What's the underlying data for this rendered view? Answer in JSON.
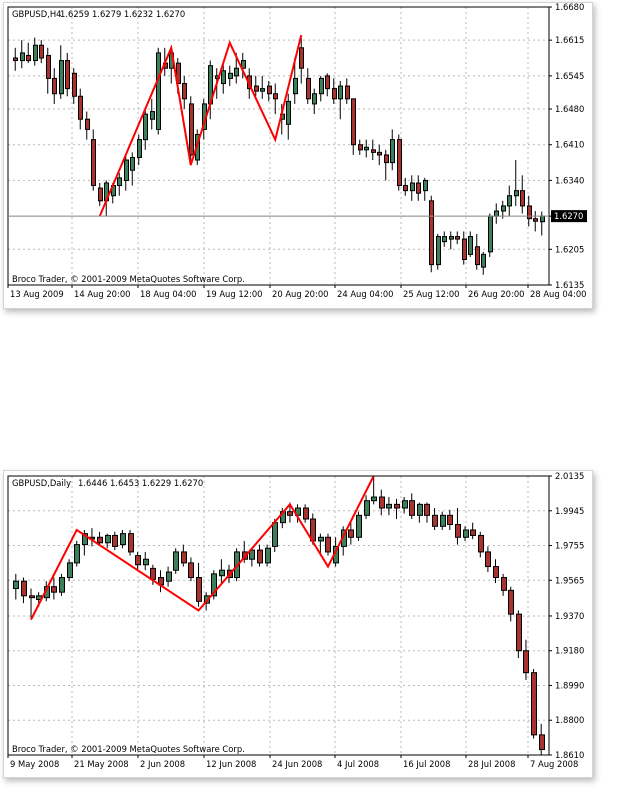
{
  "chart_data": [
    {
      "type": "candlestick",
      "symbol_header": "GBPUSD,H4",
      "ohlc_header": "1.6259 1.6279 1.6232 1.6270",
      "current_price": "1.6270",
      "watermark": "Broco Trader, © 2001-2009 MetaQuotes Software Corp.",
      "ylim": [
        1.6135,
        1.668
      ],
      "y_ticks": [
        "1.6680",
        "1.6615",
        "1.6545",
        "1.6480",
        "1.6410",
        "1.6340",
        "1.6270",
        "1.6205",
        "1.6135"
      ],
      "x_ticks": [
        "13 Aug 2009",
        "14 Aug 20:00",
        "18 Aug 04:00",
        "19 Aug 12:00",
        "20 Aug 20:00",
        "24 Aug 04:00",
        "25 Aug 12:00",
        "26 Aug 20:00",
        "28 Aug 04:00"
      ],
      "colors": {
        "bull": "#3d7f5a",
        "bear": "#a8322e",
        "zigzag": "#ff0000"
      },
      "candles": [
        [
          1.658,
          1.66,
          1.6555,
          1.6575
        ],
        [
          1.6575,
          1.6615,
          1.656,
          1.659
        ],
        [
          1.6585,
          1.661,
          1.657,
          1.6575
        ],
        [
          1.6575,
          1.662,
          1.6565,
          1.6605
        ],
        [
          1.6605,
          1.6615,
          1.657,
          1.658
        ],
        [
          1.6585,
          1.66,
          1.651,
          1.654
        ],
        [
          1.654,
          1.656,
          1.649,
          1.651
        ],
        [
          1.651,
          1.6605,
          1.65,
          1.6575
        ],
        [
          1.6575,
          1.659,
          1.6505,
          1.652
        ],
        [
          1.655,
          1.656,
          1.649,
          1.6505
        ],
        [
          1.6505,
          1.652,
          1.644,
          1.646
        ],
        [
          1.646,
          1.6475,
          1.642,
          1.644
        ],
        [
          1.642,
          1.644,
          1.632,
          1.633
        ],
        [
          1.6325,
          1.6335,
          1.629,
          1.63
        ],
        [
          1.63,
          1.634,
          1.627,
          1.6335
        ],
        [
          1.631,
          1.6335,
          1.6295,
          1.633
        ],
        [
          1.633,
          1.6355,
          1.631,
          1.6345
        ],
        [
          1.634,
          1.639,
          1.632,
          1.638
        ],
        [
          1.636,
          1.6395,
          1.633,
          1.6385
        ],
        [
          1.6385,
          1.643,
          1.637,
          1.642
        ],
        [
          1.642,
          1.648,
          1.64,
          1.647
        ],
        [
          1.646,
          1.65,
          1.644,
          1.6475
        ],
        [
          1.644,
          1.66,
          1.643,
          1.659
        ],
        [
          1.657,
          1.66,
          1.6545,
          1.656
        ],
        [
          1.656,
          1.66,
          1.653,
          1.659
        ],
        [
          1.657,
          1.658,
          1.651,
          1.653
        ],
        [
          1.653,
          1.6545,
          1.648,
          1.65
        ],
        [
          1.649,
          1.6505,
          1.637,
          1.639
        ],
        [
          1.638,
          1.644,
          1.637,
          1.643
        ],
        [
          1.644,
          1.65,
          1.642,
          1.649
        ],
        [
          1.649,
          1.6575,
          1.646,
          1.6565
        ],
        [
          1.654,
          1.656,
          1.65,
          1.6545
        ],
        [
          1.653,
          1.657,
          1.651,
          1.6555
        ],
        [
          1.654,
          1.6565,
          1.6525,
          1.655
        ],
        [
          1.6545,
          1.659,
          1.653,
          1.656
        ],
        [
          1.656,
          1.659,
          1.654,
          1.6575
        ],
        [
          1.6545,
          1.656,
          1.65,
          1.652
        ],
        [
          1.6525,
          1.6545,
          1.6505,
          1.6515
        ],
        [
          1.6515,
          1.6545,
          1.65,
          1.652
        ],
        [
          1.6525,
          1.6535,
          1.6495,
          1.651
        ],
        [
          1.651,
          1.653,
          1.647,
          1.65
        ],
        [
          1.646,
          1.649,
          1.643,
          1.647
        ],
        [
          1.645,
          1.651,
          1.642,
          1.6495
        ],
        [
          1.651,
          1.658,
          1.649,
          1.654
        ],
        [
          1.66,
          1.662,
          1.653,
          1.656
        ],
        [
          1.654,
          1.656,
          1.649,
          1.65
        ],
        [
          1.649,
          1.652,
          1.647,
          1.651
        ],
        [
          1.651,
          1.6545,
          1.6495,
          1.654
        ],
        [
          1.6545,
          1.655,
          1.6505,
          1.652
        ],
        [
          1.652,
          1.654,
          1.649,
          1.65
        ],
        [
          1.65,
          1.6535,
          1.646,
          1.6525
        ],
        [
          1.6525,
          1.654,
          1.649,
          1.65
        ],
        [
          1.65,
          1.65,
          1.639,
          1.641
        ],
        [
          1.641,
          1.642,
          1.639,
          1.64
        ],
        [
          1.64,
          1.642,
          1.6385,
          1.6405
        ],
        [
          1.64,
          1.642,
          1.638,
          1.6395
        ],
        [
          1.6395,
          1.641,
          1.637,
          1.639
        ],
        [
          1.639,
          1.64,
          1.634,
          1.6375
        ],
        [
          1.6375,
          1.644,
          1.636,
          1.642
        ],
        [
          1.642,
          1.643,
          1.632,
          1.633
        ],
        [
          1.633,
          1.6345,
          1.631,
          1.632
        ],
        [
          1.632,
          1.635,
          1.63,
          1.6335
        ],
        [
          1.6335,
          1.635,
          1.63,
          1.6315
        ],
        [
          1.632,
          1.6345,
          1.63,
          1.634
        ],
        [
          1.63,
          1.631,
          1.616,
          1.6175
        ],
        [
          1.6175,
          1.6235,
          1.6165,
          1.623
        ],
        [
          1.622,
          1.624,
          1.621,
          1.623
        ],
        [
          1.6225,
          1.624,
          1.6205,
          1.623
        ],
        [
          1.623,
          1.624,
          1.6215,
          1.6225
        ],
        [
          1.6225,
          1.624,
          1.6175,
          1.6185
        ],
        [
          1.6195,
          1.624,
          1.619,
          1.623
        ],
        [
          1.621,
          1.6235,
          1.6165,
          1.6175
        ],
        [
          1.617,
          1.62,
          1.6155,
          1.6195
        ],
        [
          1.62,
          1.6275,
          1.619,
          1.627
        ],
        [
          1.627,
          1.6295,
          1.6255,
          1.628
        ],
        [
          1.628,
          1.63,
          1.6265,
          1.629
        ],
        [
          1.629,
          1.633,
          1.627,
          1.631
        ],
        [
          1.631,
          1.638,
          1.629,
          1.632
        ],
        [
          1.632,
          1.635,
          1.6275,
          1.629
        ],
        [
          1.629,
          1.631,
          1.625,
          1.6265
        ],
        [
          1.6265,
          1.628,
          1.624,
          1.626
        ],
        [
          1.6259,
          1.6279,
          1.6232,
          1.627
        ]
      ],
      "zigzag": [
        [
          13,
          1.627
        ],
        [
          24,
          1.66
        ],
        [
          27,
          1.637
        ],
        [
          33,
          1.661
        ],
        [
          40,
          1.642
        ],
        [
          44,
          1.6625
        ]
      ]
    },
    {
      "type": "candlestick",
      "symbol_header": "GBPUSD,Daily",
      "ohlc_header": "1.6446 1.6453 1.6229 1.6270",
      "current_price": "",
      "watermark": "Broco Trader, © 2001-2009 MetaQuotes Software Corp.",
      "ylim": [
        1.861,
        2.0135
      ],
      "y_ticks": [
        "2.0135",
        "1.9945",
        "1.9755",
        "1.9565",
        "1.9370",
        "1.9180",
        "1.8990",
        "1.8800",
        "1.8610"
      ],
      "x_ticks": [
        "9 May 2008",
        "21 May 2008",
        "2 Jun 2008",
        "12 Jun 2008",
        "24 Jun 2008",
        "4 Jul 2008",
        "16 Jul 2008",
        "28 Jul 2008",
        "7 Aug 2008"
      ],
      "colors": {
        "bull": "#3d7f5a",
        "bear": "#a8322e",
        "zigzag": "#ff0000"
      },
      "candles": [
        [
          1.952,
          1.96,
          1.946,
          1.956
        ],
        [
          1.956,
          1.958,
          1.944,
          1.948
        ],
        [
          1.948,
          1.952,
          1.935,
          1.947
        ],
        [
          1.946,
          1.95,
          1.942,
          1.948
        ],
        [
          1.947,
          1.956,
          1.945,
          1.953
        ],
        [
          1.953,
          1.958,
          1.946,
          1.95
        ],
        [
          1.95,
          1.96,
          1.948,
          1.958
        ],
        [
          1.958,
          1.968,
          1.956,
          1.966
        ],
        [
          1.966,
          1.978,
          1.964,
          1.976
        ],
        [
          1.976,
          1.984,
          1.97,
          1.982
        ],
        [
          1.98,
          1.985,
          1.975,
          1.979
        ],
        [
          1.98,
          1.983,
          1.976,
          1.977
        ],
        [
          1.977,
          1.982,
          1.974,
          1.981
        ],
        [
          1.981,
          1.983,
          1.973,
          1.975
        ],
        [
          1.976,
          1.984,
          1.974,
          1.982
        ],
        [
          1.982,
          1.984,
          1.97,
          1.972
        ],
        [
          1.97,
          1.972,
          1.962,
          1.965
        ],
        [
          1.965,
          1.972,
          1.962,
          1.968
        ],
        [
          1.963,
          1.965,
          1.954,
          1.957
        ],
        [
          1.958,
          1.962,
          1.95,
          1.954
        ],
        [
          1.956,
          1.964,
          1.953,
          1.961
        ],
        [
          1.962,
          1.974,
          1.96,
          1.972
        ],
        [
          1.972,
          1.976,
          1.964,
          1.966
        ],
        [
          1.966,
          1.969,
          1.956,
          1.958
        ],
        [
          1.958,
          1.966,
          1.942,
          1.945
        ],
        [
          1.944,
          1.95,
          1.94,
          1.948
        ],
        [
          1.948,
          1.962,
          1.946,
          1.96
        ],
        [
          1.959,
          1.968,
          1.955,
          1.962
        ],
        [
          1.962,
          1.965,
          1.955,
          1.958
        ],
        [
          1.958,
          1.974,
          1.956,
          1.972
        ],
        [
          1.972,
          1.978,
          1.966,
          1.968
        ],
        [
          1.968,
          1.974,
          1.964,
          1.973
        ],
        [
          1.973,
          1.976,
          1.964,
          1.966
        ],
        [
          1.966,
          1.976,
          1.964,
          1.974
        ],
        [
          1.975,
          1.99,
          1.972,
          1.988
        ],
        [
          1.988,
          1.996,
          1.985,
          1.994
        ],
        [
          1.994,
          1.999,
          1.988,
          1.992
        ],
        [
          1.992,
          1.998,
          1.988,
          1.996
        ],
        [
          1.996,
          1.998,
          1.988,
          1.99
        ],
        [
          1.99,
          1.993,
          1.976,
          1.978
        ],
        [
          1.978,
          1.982,
          1.97,
          1.98
        ],
        [
          1.98,
          1.982,
          1.97,
          1.972
        ],
        [
          1.966,
          1.98,
          1.964,
          1.975
        ],
        [
          1.975,
          1.986,
          1.97,
          1.984
        ],
        [
          1.984,
          1.988,
          1.976,
          1.98
        ],
        [
          1.98,
          1.994,
          1.978,
          1.992
        ],
        [
          1.992,
          2.003,
          1.99,
          2.0
        ],
        [
          2.0,
          2.0135,
          1.998,
          2.002
        ],
        [
          2.002,
          2.006,
          1.992,
          1.996
        ],
        [
          1.996,
          2.002,
          1.992,
          1.998
        ],
        [
          1.998,
          2.001,
          1.99,
          1.996
        ],
        [
          1.996,
          2.002,
          1.993,
          2.0
        ],
        [
          2.0,
          2.004,
          1.99,
          1.992
        ],
        [
          1.992,
          1.999,
          1.988,
          1.998
        ],
        [
          1.998,
          1.999,
          1.988,
          1.992
        ],
        [
          1.992,
          1.996,
          1.984,
          1.986
        ],
        [
          1.986,
          1.994,
          1.984,
          1.992
        ],
        [
          1.992,
          1.995,
          1.984,
          1.987
        ],
        [
          1.987,
          1.996,
          1.976,
          1.98
        ],
        [
          1.98,
          1.986,
          1.978,
          1.984
        ],
        [
          1.984,
          1.988,
          1.979,
          1.981
        ],
        [
          1.981,
          1.983,
          1.969,
          1.972
        ],
        [
          1.972,
          1.975,
          1.961,
          1.964
        ],
        [
          1.964,
          1.968,
          1.955,
          1.958
        ],
        [
          1.958,
          1.96,
          1.948,
          1.951
        ],
        [
          1.951,
          1.953,
          1.934,
          1.938
        ],
        [
          1.938,
          1.94,
          1.914,
          1.918
        ],
        [
          1.918,
          1.924,
          1.902,
          1.906
        ],
        [
          1.906,
          1.908,
          1.87,
          1.872
        ],
        [
          1.872,
          1.878,
          1.861,
          1.864
        ]
      ],
      "zigzag": [
        [
          2,
          1.935
        ],
        [
          8,
          1.984
        ],
        [
          24,
          1.94
        ],
        [
          36,
          1.998
        ],
        [
          41,
          1.964
        ],
        [
          47,
          2.0135
        ]
      ]
    }
  ]
}
